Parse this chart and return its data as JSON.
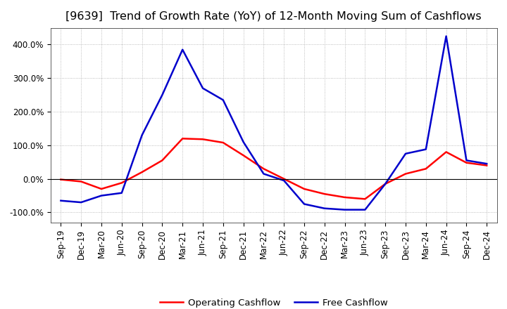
{
  "title": "[9639]  Trend of Growth Rate (YoY) of 12-Month Moving Sum of Cashflows",
  "x_labels": [
    "Sep-19",
    "Dec-19",
    "Mar-20",
    "Jun-20",
    "Sep-20",
    "Dec-20",
    "Mar-21",
    "Jun-21",
    "Sep-21",
    "Dec-21",
    "Mar-22",
    "Jun-22",
    "Sep-22",
    "Dec-22",
    "Mar-23",
    "Jun-23",
    "Sep-23",
    "Dec-23",
    "Mar-24",
    "Jun-24",
    "Sep-24",
    "Dec-24"
  ],
  "operating_cashflow": [
    -2,
    -8,
    -30,
    -12,
    20,
    55,
    120,
    118,
    108,
    70,
    30,
    0,
    -30,
    -45,
    -55,
    -60,
    -15,
    15,
    30,
    80,
    48,
    40
  ],
  "free_cashflow": [
    -65,
    -70,
    -50,
    -42,
    130,
    250,
    385,
    270,
    235,
    110,
    15,
    -5,
    -75,
    -88,
    -92,
    -92,
    -15,
    75,
    88,
    425,
    55,
    45
  ],
  "operating_color": "#ff0000",
  "free_color": "#0000cc",
  "background_color": "#ffffff",
  "grid_color": "#aaaaaa",
  "ylim_min": -130,
  "ylim_max": 450,
  "yticks": [
    -100,
    0,
    100,
    200,
    300,
    400
  ],
  "legend_labels": [
    "Operating Cashflow",
    "Free Cashflow"
  ],
  "title_fontsize": 11.5,
  "axis_fontsize": 8.5
}
